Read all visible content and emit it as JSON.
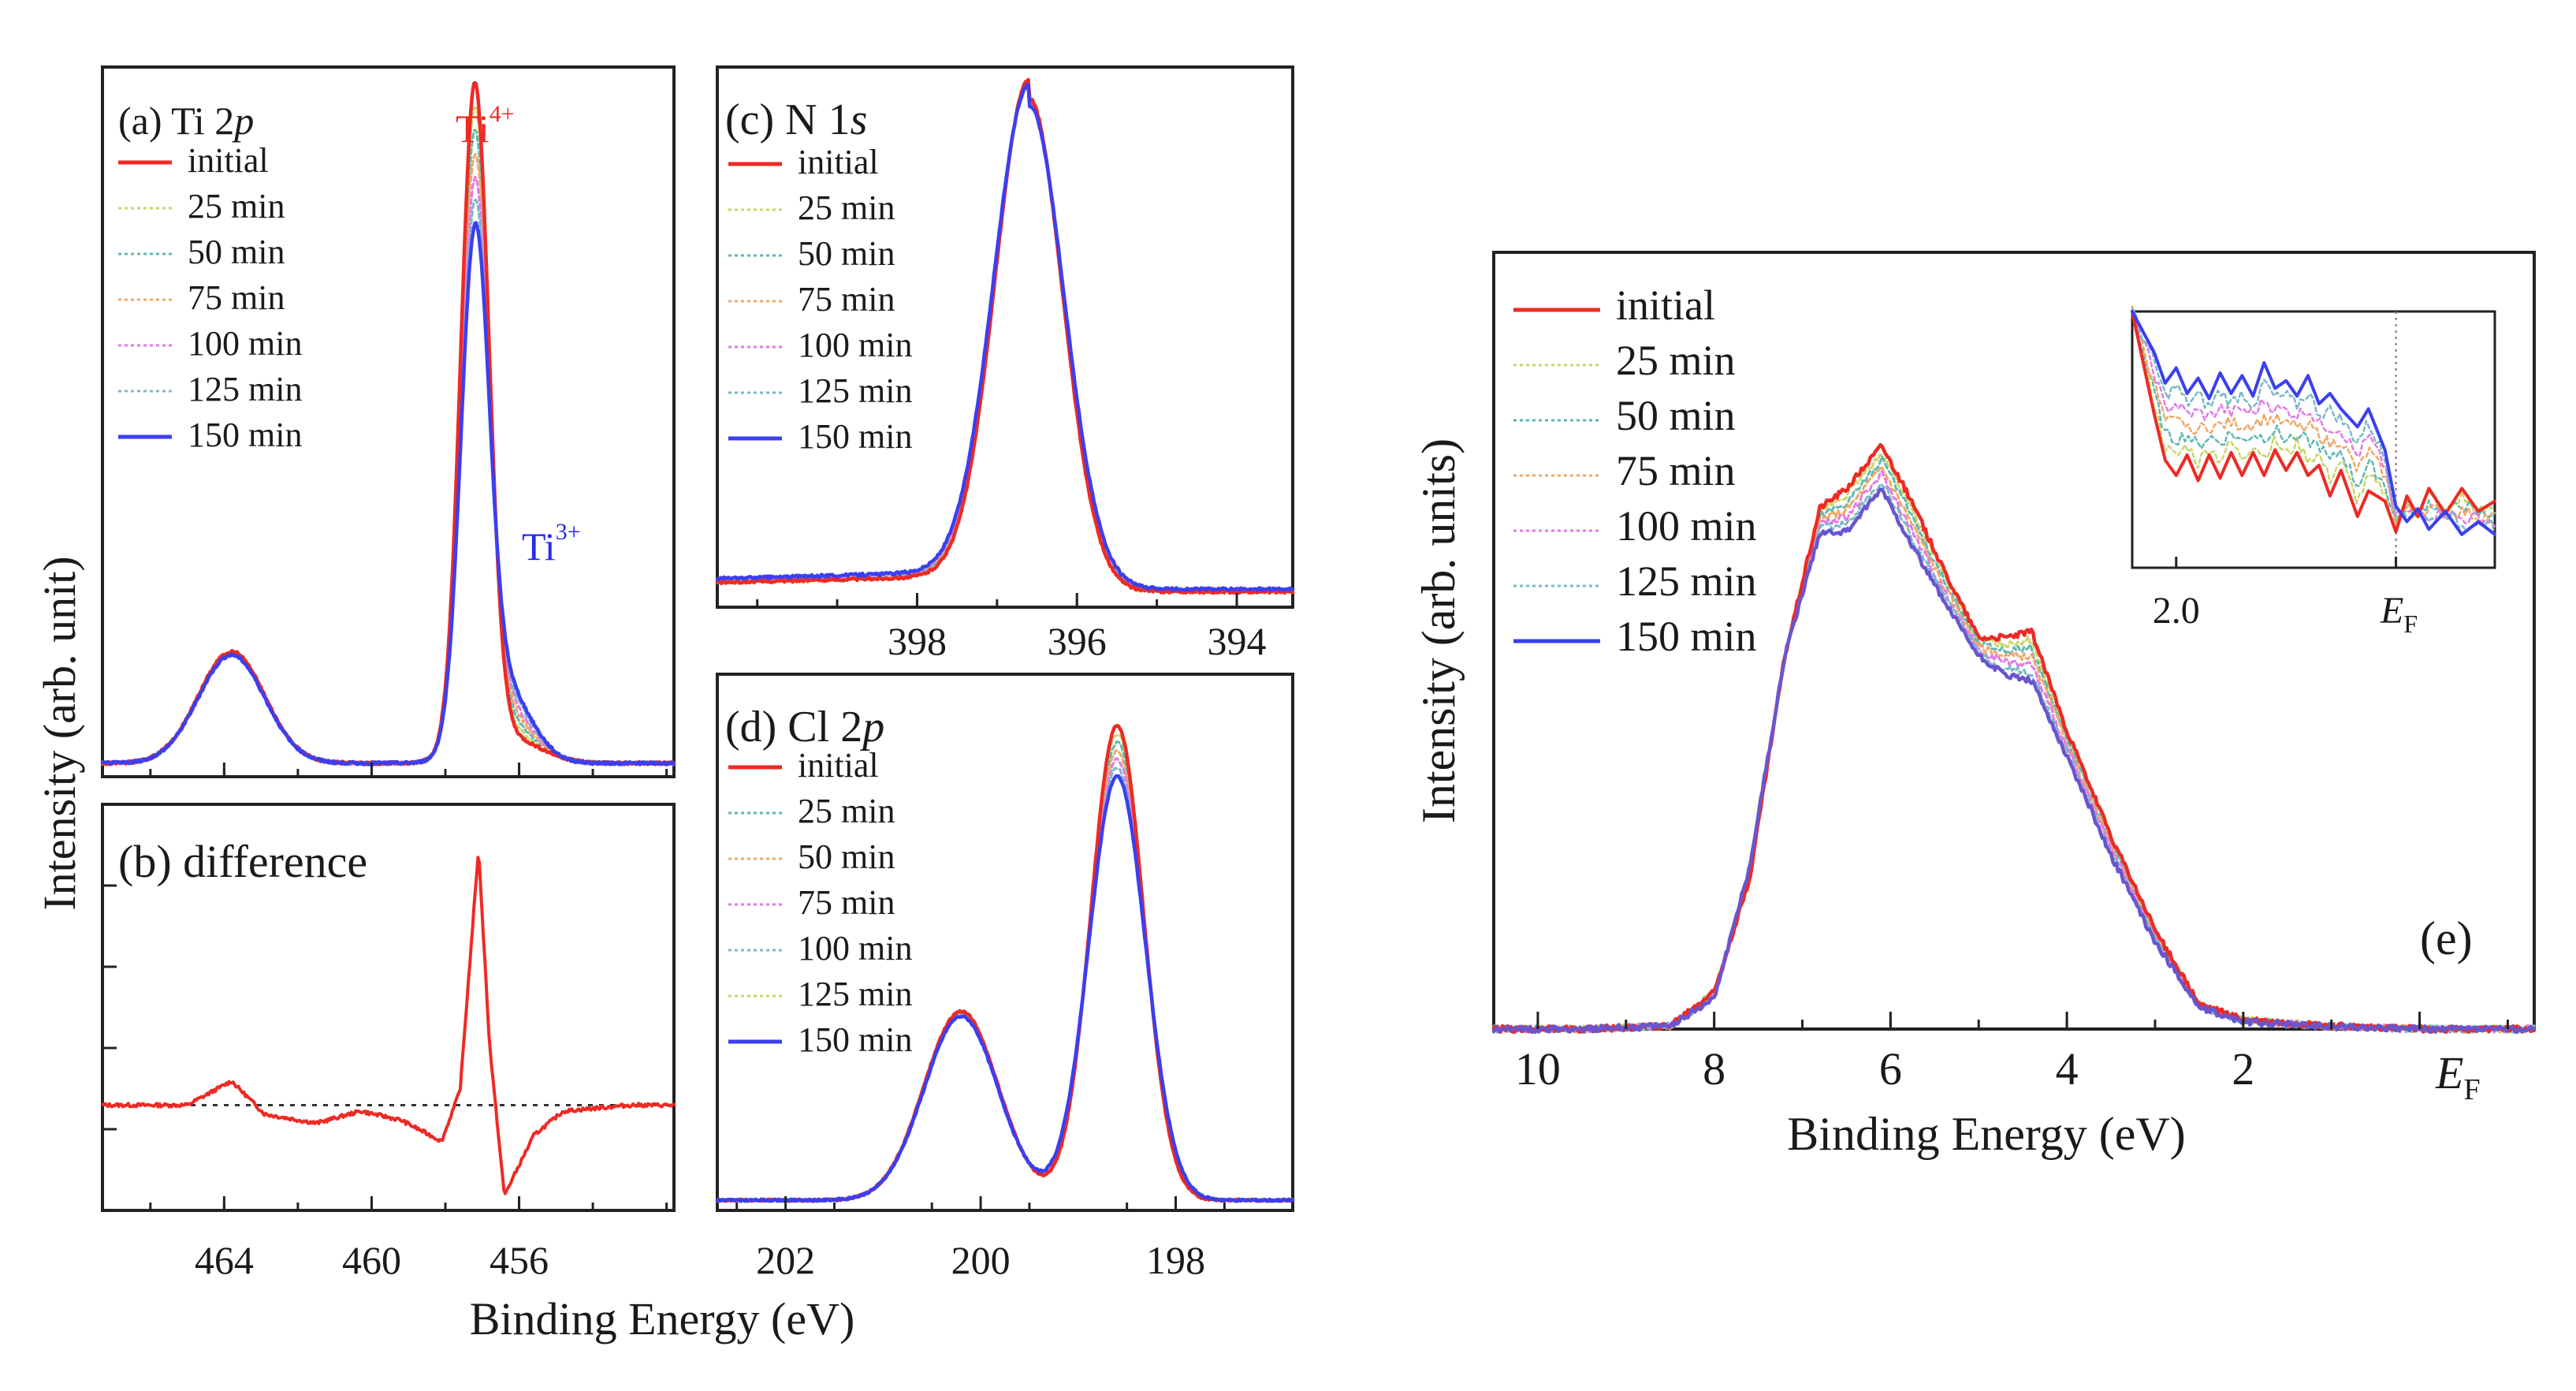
{
  "colors": {
    "initial": "#ee2a24",
    "m25": "#c9d66b",
    "m50": "#5fb8b0",
    "m75": "#f0a868",
    "m100": "#e27ae6",
    "m125": "#7ab9c6",
    "m150": "#3b3ff0",
    "m150e": "#6a55cf",
    "ti4": "#ee2a24",
    "ti3": "#2a2ae8"
  },
  "chart_data": [
    {
      "id": "a",
      "type": "line",
      "label": "(a) Ti 2",
      "label_italic": "p",
      "xlabel": "Binding Energy (eV)",
      "ylabel": "Intensity (arb. unit)",
      "xlim": [
        467.3,
        451.8
      ],
      "ylim": [
        0,
        1.05
      ],
      "xticks": [
        464,
        460,
        456
      ],
      "legend": [
        "initial",
        "25 min",
        "50 min",
        "75 min",
        "100 min",
        "125 min",
        "150 min"
      ],
      "annotations": {
        "ti4_base": "Ti",
        "ti4_sup": "4+",
        "ti3_base": "Ti",
        "ti3_sup": "3+"
      },
      "series": [
        {
          "name": "initial",
          "peaks": [
            [
              463.8,
              0.165,
              0.9
            ],
            [
              457.2,
              0.98,
              0.38
            ],
            [
              456.4,
              0.04,
              0.9
            ]
          ]
        },
        {
          "name": "150 min",
          "peaks": [
            [
              463.8,
              0.16,
              0.9
            ],
            [
              457.2,
              0.72,
              0.38
            ],
            [
              456.5,
              0.12,
              0.75
            ]
          ]
        }
      ]
    },
    {
      "id": "b",
      "type": "line",
      "label": "(b) difference",
      "xlim": [
        467.3,
        451.8
      ],
      "ylim": [
        -0.35,
        1.0
      ],
      "xticks": [
        464,
        460,
        456
      ],
      "series": [
        {
          "name": "difference",
          "points": [
            [
              467.3,
              0
            ],
            [
              465,
              0
            ],
            [
              463.8,
              0.08
            ],
            [
              462.9,
              -0.03
            ],
            [
              461.5,
              -0.06
            ],
            [
              460.3,
              -0.02
            ],
            [
              459.2,
              -0.05
            ],
            [
              458.1,
              -0.12
            ],
            [
              457.6,
              0.05
            ],
            [
              457.1,
              0.85
            ],
            [
              456.8,
              0.2
            ],
            [
              456.4,
              -0.3
            ],
            [
              455.6,
              -0.1
            ],
            [
              454.8,
              -0.02
            ],
            [
              453,
              0
            ],
            [
              451.8,
              0
            ]
          ]
        }
      ]
    },
    {
      "id": "c",
      "type": "line",
      "label": "(c) N 1",
      "label_italic": "s",
      "xlim": [
        400.5,
        393.3
      ],
      "ylim": [
        0,
        1.05
      ],
      "xticks": [
        398,
        396,
        394
      ],
      "legend": [
        "initial",
        "25 min",
        "50 min",
        "75 min",
        "100 min",
        "125 min",
        "150 min"
      ],
      "series": [
        {
          "name": "initial",
          "peaks": [
            [
              396.6,
              0.96,
              0.42
            ]
          ]
        },
        {
          "name": "150 min",
          "peaks": [
            [
              396.6,
              0.94,
              0.44
            ]
          ]
        }
      ]
    },
    {
      "id": "d",
      "type": "line",
      "label": "(d) Cl 2",
      "label_italic": "p",
      "xlim": [
        202.7,
        196.8
      ],
      "ylim": [
        0,
        1.05
      ],
      "xticks": [
        202,
        200,
        198
      ],
      "legend": [
        "initial",
        "25 min",
        "50 min",
        "75 min",
        "100 min",
        "125 min",
        "150 min"
      ],
      "legend_colors": [
        "initial",
        "m50",
        "m75",
        "m100",
        "m125",
        "m25",
        "m150"
      ],
      "series": [
        {
          "name": "initial",
          "peaks": [
            [
              200.2,
              0.37,
              0.38
            ],
            [
              198.6,
              0.93,
              0.27
            ]
          ]
        },
        {
          "name": "150 min",
          "peaks": [
            [
              200.2,
              0.36,
              0.38
            ],
            [
              198.6,
              0.83,
              0.29
            ]
          ]
        }
      ]
    },
    {
      "id": "e",
      "type": "line",
      "label": "(e)",
      "xlabel": "Binding Energy (eV)",
      "ylabel": "Intensity (arb. units)",
      "xlim": [
        10.5,
        -1.3
      ],
      "ylim": [
        0,
        1.0
      ],
      "xticks": [
        10,
        8,
        6,
        4,
        2
      ],
      "xtick_ef": "E",
      "xtick_ef_sub": "F",
      "legend": [
        "initial",
        "25 min",
        "50 min",
        "75 min",
        "100 min",
        "125 min",
        "150 min"
      ],
      "series": [
        {
          "name": "initial",
          "points": [
            [
              10.5,
              0.0
            ],
            [
              9.5,
              0.0
            ],
            [
              8.5,
              0.005
            ],
            [
              8.0,
              0.06
            ],
            [
              7.6,
              0.24
            ],
            [
              7.2,
              0.6
            ],
            [
              6.8,
              0.84
            ],
            [
              6.5,
              0.87
            ],
            [
              6.1,
              0.94
            ],
            [
              5.8,
              0.86
            ],
            [
              5.4,
              0.74
            ],
            [
              5.0,
              0.63
            ],
            [
              4.7,
              0.63
            ],
            [
              4.4,
              0.64
            ],
            [
              4.0,
              0.48
            ],
            [
              3.5,
              0.31
            ],
            [
              3.0,
              0.16
            ],
            [
              2.5,
              0.04
            ],
            [
              2.0,
              0.015
            ],
            [
              1.0,
              0.005
            ],
            [
              0,
              0.0
            ],
            [
              -1.3,
              0.0
            ]
          ]
        },
        {
          "name": "150 min",
          "points": [
            [
              10.5,
              0.0
            ],
            [
              9.5,
              0.0
            ],
            [
              8.5,
              0.005
            ],
            [
              8.0,
              0.05
            ],
            [
              7.6,
              0.26
            ],
            [
              7.2,
              0.6
            ],
            [
              6.8,
              0.8
            ],
            [
              6.5,
              0.8
            ],
            [
              6.1,
              0.87
            ],
            [
              5.8,
              0.79
            ],
            [
              5.4,
              0.69
            ],
            [
              5.0,
              0.6
            ],
            [
              4.7,
              0.57
            ],
            [
              4.4,
              0.56
            ],
            [
              4.0,
              0.44
            ],
            [
              3.5,
              0.28
            ],
            [
              3.0,
              0.14
            ],
            [
              2.5,
              0.035
            ],
            [
              2.0,
              0.012
            ],
            [
              1.0,
              0.004
            ],
            [
              0,
              0.0
            ],
            [
              -1.3,
              0.0
            ]
          ]
        }
      ]
    },
    {
      "id": "e-inset",
      "type": "line",
      "xlim": [
        2.4,
        -0.9
      ],
      "ylim": [
        0,
        1.0
      ],
      "xticks": [
        2.0
      ],
      "xtick_ef": "E",
      "xtick_ef_sub": "F",
      "series": [
        {
          "name": "initial",
          "points": [
            [
              2.4,
              1.0
            ],
            [
              2.2,
              0.6
            ],
            [
              2.1,
              0.42
            ],
            [
              2.0,
              0.36
            ],
            [
              1.9,
              0.44
            ],
            [
              1.8,
              0.34
            ],
            [
              1.7,
              0.44
            ],
            [
              1.6,
              0.35
            ],
            [
              1.5,
              0.45
            ],
            [
              1.4,
              0.36
            ],
            [
              1.3,
              0.45
            ],
            [
              1.2,
              0.36
            ],
            [
              1.1,
              0.46
            ],
            [
              1.0,
              0.38
            ],
            [
              0.9,
              0.45
            ],
            [
              0.8,
              0.36
            ],
            [
              0.7,
              0.4
            ],
            [
              0.6,
              0.28
            ],
            [
              0.5,
              0.38
            ],
            [
              0.35,
              0.2
            ],
            [
              0.25,
              0.3
            ],
            [
              0.1,
              0.26
            ],
            [
              0,
              0.14
            ],
            [
              -0.1,
              0.28
            ],
            [
              -0.2,
              0.2
            ],
            [
              -0.3,
              0.31
            ],
            [
              -0.45,
              0.21
            ],
            [
              -0.6,
              0.31
            ],
            [
              -0.75,
              0.22
            ],
            [
              -0.9,
              0.26
            ]
          ]
        },
        {
          "name": "150 min",
          "points": [
            [
              2.4,
              1.0
            ],
            [
              2.3,
              0.92
            ],
            [
              2.2,
              0.84
            ],
            [
              2.1,
              0.72
            ],
            [
              2.0,
              0.78
            ],
            [
              1.9,
              0.68
            ],
            [
              1.8,
              0.74
            ],
            [
              1.7,
              0.66
            ],
            [
              1.6,
              0.76
            ],
            [
              1.5,
              0.68
            ],
            [
              1.4,
              0.75
            ],
            [
              1.3,
              0.67
            ],
            [
              1.2,
              0.8
            ],
            [
              1.1,
              0.7
            ],
            [
              1.0,
              0.73
            ],
            [
              0.9,
              0.67
            ],
            [
              0.8,
              0.75
            ],
            [
              0.7,
              0.64
            ],
            [
              0.6,
              0.68
            ],
            [
              0.5,
              0.62
            ],
            [
              0.35,
              0.55
            ],
            [
              0.25,
              0.62
            ],
            [
              0.1,
              0.46
            ],
            [
              0,
              0.24
            ],
            [
              -0.1,
              0.18
            ],
            [
              -0.2,
              0.23
            ],
            [
              -0.3,
              0.15
            ],
            [
              -0.45,
              0.22
            ],
            [
              -0.6,
              0.13
            ],
            [
              -0.75,
              0.18
            ],
            [
              -0.9,
              0.13
            ]
          ]
        }
      ]
    }
  ]
}
